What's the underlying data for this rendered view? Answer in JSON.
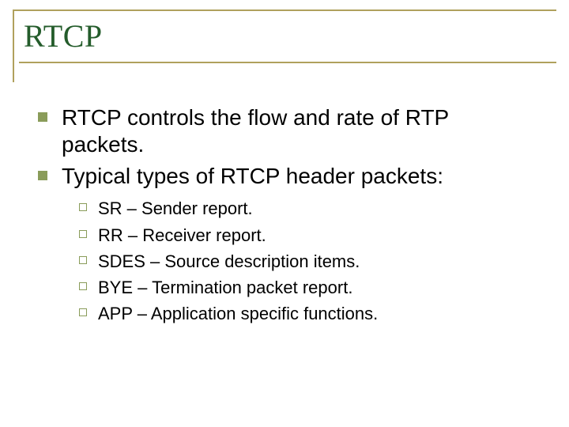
{
  "slide": {
    "title": "RTCP",
    "title_color": "#245c2b",
    "title_font_family": "Times New Roman",
    "title_font_size_pt": 40,
    "rule_color": "#b0a15d",
    "body_text_color": "#000000",
    "lvl1_bullet_color": "#8a9c5a",
    "lvl2_bullet_border_color": "#8a9c5a",
    "lvl1_font_size_pt": 28,
    "lvl2_font_size_pt": 22,
    "background_color": "#ffffff",
    "bullets": [
      {
        "text": "RTCP controls the flow and rate of RTP packets."
      },
      {
        "text": "Typical types of RTCP header packets:",
        "sub": [
          {
            "text": "SR – Sender report."
          },
          {
            "text": "RR – Receiver report."
          },
          {
            "text": "SDES – Source description items."
          },
          {
            "text": "BYE – Termination packet report."
          },
          {
            "text": "APP – Application specific functions."
          }
        ]
      }
    ]
  }
}
